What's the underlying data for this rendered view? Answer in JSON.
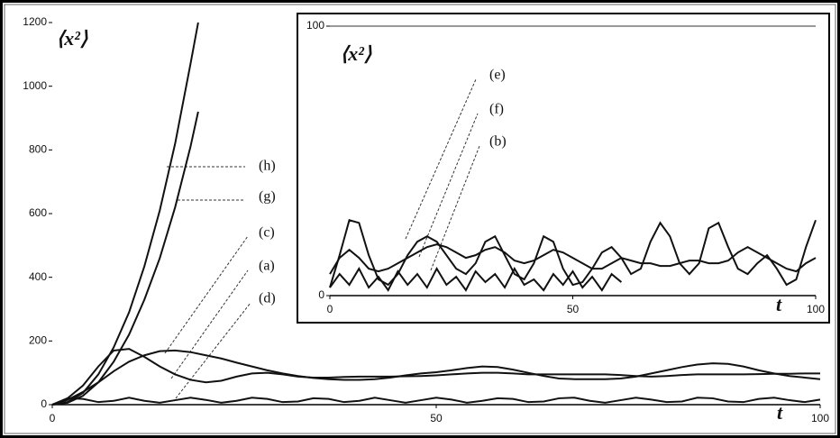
{
  "chart_data": [
    {
      "type": "line",
      "y_label": "⟨x²⟩",
      "x_label": "t",
      "xlim": [
        0,
        100
      ],
      "xticks": [
        0,
        50,
        100
      ],
      "ylim": [
        0,
        1200
      ],
      "yticks": [
        0,
        200,
        400,
        600,
        800,
        1000,
        1200
      ],
      "series": [
        {
          "name": "(h)",
          "color": "#111111",
          "x": [
            0,
            2,
            4,
            6,
            8,
            10,
            12,
            14,
            16,
            18,
            19
          ],
          "values": [
            0,
            8,
            37,
            95,
            180,
            290,
            435,
            610,
            820,
            1070,
            1200
          ]
        },
        {
          "name": "(g)",
          "color": "#111111",
          "x": [
            0,
            2,
            4,
            6,
            8,
            10,
            12,
            14,
            16,
            18,
            19
          ],
          "values": [
            0,
            6,
            28,
            70,
            135,
            220,
            330,
            460,
            620,
            810,
            920
          ]
        },
        {
          "name": "(c)",
          "color": "#111111",
          "x": [
            0,
            2,
            4,
            6,
            8,
            10,
            12,
            14,
            16,
            18,
            20,
            22,
            24,
            26,
            28,
            30,
            32,
            34,
            36,
            38,
            40,
            42,
            44,
            46,
            48,
            50,
            52,
            54,
            56,
            58,
            60,
            62,
            64,
            66,
            68,
            70,
            72,
            74,
            76,
            78,
            80,
            82,
            84,
            86,
            88,
            90,
            92,
            94,
            96,
            98,
            100
          ],
          "values": [
            0,
            15,
            40,
            70,
            105,
            135,
            155,
            168,
            170,
            165,
            155,
            145,
            132,
            120,
            108,
            98,
            90,
            84,
            80,
            78,
            78,
            80,
            85,
            92,
            98,
            102,
            108,
            115,
            120,
            118,
            110,
            100,
            90,
            82,
            80,
            80,
            80,
            82,
            88,
            98,
            108,
            118,
            126,
            130,
            128,
            120,
            108,
            98,
            90,
            85,
            80
          ]
        },
        {
          "name": "(a)",
          "color": "#111111",
          "x": [
            0,
            2,
            4,
            6,
            8,
            10,
            12,
            14,
            16,
            18,
            20,
            22,
            24,
            26,
            28,
            30,
            32,
            34,
            36,
            38,
            40,
            42,
            44,
            46,
            48,
            50,
            52,
            54,
            56,
            58,
            60,
            62,
            64,
            66,
            68,
            70,
            72,
            74,
            76,
            78,
            80,
            82,
            84,
            86,
            88,
            90,
            92,
            94,
            96,
            98,
            100
          ],
          "values": [
            0,
            20,
            60,
            120,
            170,
            175,
            150,
            120,
            95,
            78,
            70,
            75,
            88,
            98,
            100,
            95,
            88,
            85,
            85,
            87,
            88,
            88,
            88,
            89,
            90,
            92,
            95,
            98,
            100,
            100,
            98,
            95,
            95,
            95,
            95,
            95,
            95,
            93,
            90,
            88,
            90,
            93,
            95,
            95,
            95,
            95,
            96,
            97,
            97,
            98,
            98
          ]
        },
        {
          "name": "(d)",
          "color": "#111111",
          "x": [
            0,
            2,
            4,
            6,
            8,
            10,
            12,
            14,
            16,
            18,
            20,
            22,
            24,
            26,
            28,
            30,
            32,
            34,
            36,
            38,
            40,
            42,
            44,
            46,
            48,
            50,
            52,
            54,
            56,
            58,
            60,
            62,
            64,
            66,
            68,
            70,
            72,
            74,
            76,
            78,
            80,
            82,
            84,
            86,
            88,
            90,
            92,
            94,
            96,
            98,
            100
          ],
          "values": [
            0,
            20,
            18,
            8,
            12,
            22,
            12,
            6,
            14,
            22,
            15,
            6,
            12,
            22,
            18,
            8,
            10,
            20,
            18,
            8,
            12,
            22,
            14,
            6,
            14,
            22,
            16,
            6,
            12,
            20,
            18,
            8,
            10,
            20,
            22,
            12,
            6,
            14,
            22,
            16,
            8,
            10,
            22,
            20,
            10,
            8,
            18,
            22,
            14,
            8,
            16
          ]
        }
      ]
    },
    {
      "type": "line",
      "y_label": "⟨x²⟩",
      "x_label": "t",
      "xlim": [
        0,
        100
      ],
      "xticks": [
        0,
        50,
        100
      ],
      "ylim": [
        0,
        100
      ],
      "yticks": [
        0,
        100
      ],
      "series": [
        {
          "name": "(e)",
          "color": "#111111",
          "x": [
            0,
            2,
            4,
            6,
            8,
            10,
            12,
            14,
            16,
            18,
            20,
            22,
            24,
            26,
            28,
            30,
            32,
            34,
            36,
            38,
            40,
            42,
            44,
            46,
            48,
            50,
            52,
            54,
            56,
            58,
            60,
            62,
            64,
            66,
            68,
            70,
            72,
            74,
            76,
            78,
            80,
            82,
            84,
            86,
            88,
            90,
            92,
            94,
            96,
            98,
            100
          ],
          "values": [
            3,
            15,
            28,
            27,
            15,
            6,
            4,
            8,
            15,
            20,
            22,
            20,
            15,
            10,
            8,
            12,
            20,
            22,
            15,
            8,
            6,
            12,
            22,
            20,
            10,
            4,
            5,
            10,
            16,
            18,
            14,
            8,
            10,
            20,
            27,
            22,
            12,
            8,
            12,
            25,
            27,
            18,
            10,
            8,
            12,
            15,
            10,
            4,
            6,
            18,
            28
          ]
        },
        {
          "name": "(f)",
          "color": "#111111",
          "x": [
            0,
            2,
            4,
            6,
            8,
            10,
            12,
            14,
            16,
            18,
            20,
            22,
            24,
            26,
            28,
            30,
            32,
            34,
            36,
            38,
            40,
            42,
            44,
            46,
            48,
            50,
            52,
            54,
            56,
            58,
            60,
            62,
            64,
            66,
            68,
            70,
            72,
            74,
            76,
            78,
            80,
            82,
            84,
            86,
            88,
            90,
            92,
            94,
            96,
            98,
            100
          ],
          "values": [
            8,
            14,
            17,
            14,
            10,
            9,
            10,
            12,
            14,
            16,
            18,
            19,
            18,
            16,
            14,
            15,
            17,
            18,
            16,
            13,
            12,
            13,
            15,
            17,
            16,
            14,
            12,
            10,
            10,
            12,
            14,
            13,
            12,
            12,
            11,
            11,
            12,
            13,
            13,
            12,
            12,
            13,
            16,
            18,
            16,
            14,
            12,
            10,
            9,
            12,
            14
          ]
        },
        {
          "name": "(b)",
          "color": "#111111",
          "x": [
            0,
            2,
            4,
            6,
            8,
            10,
            12,
            14,
            16,
            18,
            20,
            22,
            24,
            26,
            28,
            30,
            32,
            34,
            36,
            38,
            40,
            42,
            44,
            46,
            48,
            50,
            52,
            54,
            56,
            58,
            60
          ],
          "values": [
            3,
            8,
            4,
            10,
            3,
            7,
            2,
            9,
            4,
            8,
            3,
            10,
            4,
            7,
            2,
            9,
            5,
            8,
            3,
            10,
            4,
            6,
            2,
            8,
            4,
            9,
            3,
            7,
            2,
            8,
            5
          ]
        }
      ]
    }
  ]
}
